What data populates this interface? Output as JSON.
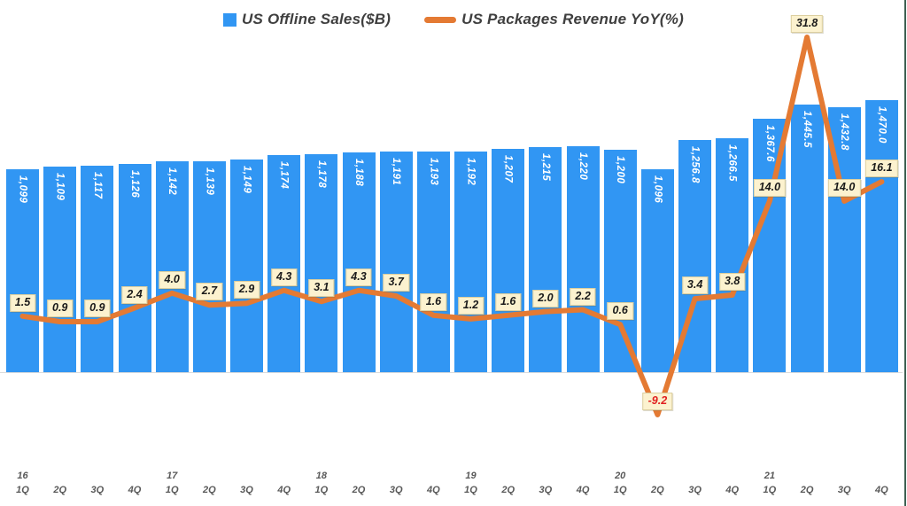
{
  "legend": {
    "items": [
      {
        "label": "US Offline Sales($B)",
        "swatch": "bar"
      },
      {
        "label": "US Packages Revenue YoY(%)",
        "swatch": "line"
      }
    ]
  },
  "chart_data": {
    "type": "bar",
    "subtype": "bar-line-combo",
    "legend_position": "top-center",
    "grid": false,
    "categories": [
      {
        "year": "16",
        "quarter": "1Q"
      },
      {
        "quarter": "2Q"
      },
      {
        "quarter": "3Q"
      },
      {
        "quarter": "4Q"
      },
      {
        "year": "17",
        "quarter": "1Q"
      },
      {
        "quarter": "2Q"
      },
      {
        "quarter": "3Q"
      },
      {
        "quarter": "4Q"
      },
      {
        "year": "18",
        "quarter": "1Q"
      },
      {
        "quarter": "2Q"
      },
      {
        "quarter": "3Q"
      },
      {
        "quarter": "4Q"
      },
      {
        "year": "19",
        "quarter": "1Q"
      },
      {
        "quarter": "2Q"
      },
      {
        "quarter": "3Q"
      },
      {
        "quarter": "4Q"
      },
      {
        "year": "20",
        "quarter": "1Q"
      },
      {
        "quarter": "2Q"
      },
      {
        "quarter": "3Q"
      },
      {
        "quarter": "4Q"
      },
      {
        "year": "21",
        "quarter": "1Q"
      },
      {
        "quarter": "2Q"
      },
      {
        "quarter": "3Q"
      },
      {
        "quarter": "4Q"
      }
    ],
    "series": [
      {
        "name": "US Offline Sales($B)",
        "type": "bar",
        "axis": "left",
        "axis_min": 0,
        "values": [
          1099,
          1109,
          1117,
          1126,
          1142,
          1139,
          1149,
          1174,
          1178,
          1188,
          1191,
          1193,
          1192,
          1207,
          1215,
          1220,
          1200,
          1096,
          1256.8,
          1266.5,
          1367.6,
          1445.5,
          1432.8,
          1470.0
        ],
        "labels": [
          "1,099",
          "1,109",
          "1,117",
          "1,126",
          "1,142",
          "1,139",
          "1,149",
          "1,174",
          "1,178",
          "1,188",
          "1,191",
          "1,193",
          "1,192",
          "1,207",
          "1,215",
          "1,220",
          "1,200",
          "1,096",
          "1,256.8",
          "1,266.5",
          "1,367.6",
          "1,445.5",
          "1,432.8",
          "1,470.0"
        ]
      },
      {
        "name": "US Packages Revenue YoY(%)",
        "type": "line",
        "axis": "right",
        "values": [
          1.5,
          0.9,
          0.9,
          2.4,
          4.0,
          2.7,
          2.9,
          4.3,
          3.1,
          4.3,
          3.7,
          1.6,
          1.2,
          1.6,
          2.0,
          2.2,
          0.6,
          -9.2,
          3.4,
          3.8,
          14.0,
          31.8,
          14.0,
          16.1
        ],
        "labels": [
          "1.5",
          "0.9",
          "0.9",
          "2.4",
          "4.0",
          "2.7",
          "2.9",
          "4.3",
          "3.1",
          "4.3",
          "3.7",
          "1.6",
          "1.2",
          "1.6",
          "2.0",
          "2.2",
          "0.6",
          "-9.2",
          "3.4",
          "3.8",
          "14.0",
          "31.8",
          "14.0",
          "16.1"
        ]
      }
    ]
  },
  "colors": {
    "bar": "#3196F3",
    "line": "#E47A33",
    "bar_label_text": "#FFFFFF",
    "label_box_bg": "#FCF2CF",
    "label_box_border": "#DCCFA0",
    "negative_label_text": "#E02020",
    "axis_text": "#595959",
    "legend_text": "#3F3F3F",
    "baseline": "#DADADA",
    "page_border_green": "#3E6052"
  }
}
